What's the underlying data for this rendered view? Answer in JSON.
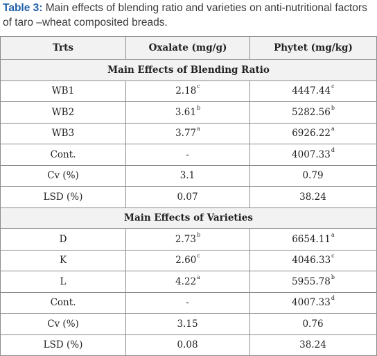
{
  "caption": {
    "label": "Table 3:",
    "text": " Main effects of blending ratio and varieties on anti-nutritional factors of taro –wheat composited breads."
  },
  "table": {
    "headers": [
      "Trts",
      "Oxalate (mg/g)",
      "Phytet (mg/kg)"
    ],
    "section1": "Main Effects of Blending Ratio",
    "rows1": [
      {
        "trt": "WB1",
        "oxalate": "2.18",
        "oxalate_sup": "c",
        "phytet": "4447.44",
        "phytet_sup": "c"
      },
      {
        "trt": "WB2",
        "oxalate": "3.61",
        "oxalate_sup": "b",
        "phytet": "5282.56",
        "phytet_sup": "b"
      },
      {
        "trt": "WB3",
        "oxalate": "3.77",
        "oxalate_sup": "a",
        "phytet": "6926.22",
        "phytet_sup": "a"
      },
      {
        "trt": "Cont.",
        "oxalate": "-",
        "oxalate_sup": "",
        "phytet": "4007.33",
        "phytet_sup": "d"
      },
      {
        "trt": "Cv (%)",
        "oxalate": "3.1",
        "oxalate_sup": "",
        "phytet": "0.79",
        "phytet_sup": ""
      },
      {
        "trt": "LSD (%)",
        "oxalate": "0.07",
        "oxalate_sup": "",
        "phytet": "38.24",
        "phytet_sup": ""
      }
    ],
    "section2": "Main Effects of Varieties",
    "rows2": [
      {
        "trt": "D",
        "oxalate": "2.73",
        "oxalate_sup": "b",
        "phytet": "6654.11",
        "phytet_sup": "a"
      },
      {
        "trt": "K",
        "oxalate": "2.60",
        "oxalate_sup": "c",
        "phytet": "4046.33",
        "phytet_sup": "c"
      },
      {
        "trt": "L",
        "oxalate": "4.22",
        "oxalate_sup": "a",
        "phytet": "5955.78",
        "phytet_sup": "b"
      },
      {
        "trt": "Cont.",
        "oxalate": "-",
        "oxalate_sup": "",
        "phytet": "4007.33",
        "phytet_sup": "d"
      },
      {
        "trt": "Cv (%)",
        "oxalate": "3.15",
        "oxalate_sup": "",
        "phytet": "0.76",
        "phytet_sup": ""
      },
      {
        "trt": "LSD (%)",
        "oxalate": "0.08",
        "oxalate_sup": "",
        "phytet": "38.24",
        "phytet_sup": ""
      }
    ]
  }
}
